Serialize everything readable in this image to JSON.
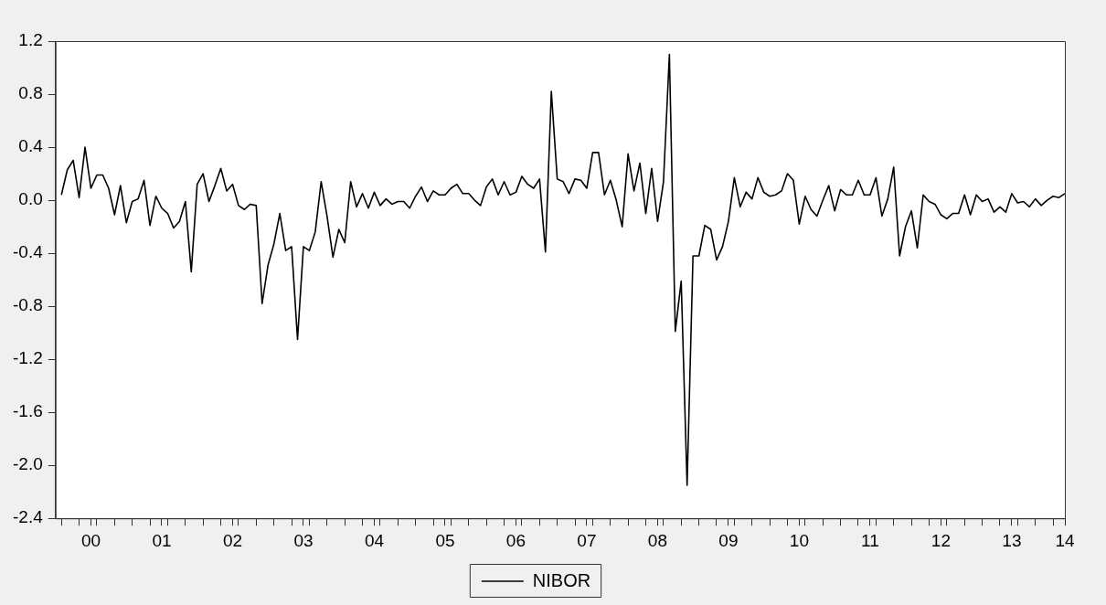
{
  "chart_data": {
    "type": "line",
    "legend": "bottom",
    "line_style": "solid",
    "x": [
      "2000-01",
      "2000-02",
      "2000-03",
      "2000-04",
      "2000-05",
      "2000-06",
      "2000-07",
      "2000-08",
      "2000-09",
      "2000-10",
      "2000-11",
      "2000-12",
      "2001-01",
      "2001-02",
      "2001-03",
      "2001-04",
      "2001-05",
      "2001-06",
      "2001-07",
      "2001-08",
      "2001-09",
      "2001-10",
      "2001-11",
      "2001-12",
      "2002-01",
      "2002-02",
      "2002-03",
      "2002-04",
      "2002-05",
      "2002-06",
      "2002-07",
      "2002-08",
      "2002-09",
      "2002-10",
      "2002-11",
      "2002-12",
      "2003-01",
      "2003-02",
      "2003-03",
      "2003-04",
      "2003-05",
      "2003-06",
      "2003-07",
      "2003-08",
      "2003-09",
      "2003-10",
      "2003-11",
      "2003-12",
      "2004-01",
      "2004-02",
      "2004-03",
      "2004-04",
      "2004-05",
      "2004-06",
      "2004-07",
      "2004-08",
      "2004-09",
      "2004-10",
      "2004-11",
      "2004-12",
      "2005-01",
      "2005-02",
      "2005-03",
      "2005-04",
      "2005-05",
      "2005-06",
      "2005-07",
      "2005-08",
      "2005-09",
      "2005-10",
      "2005-11",
      "2005-12",
      "2006-01",
      "2006-02",
      "2006-03",
      "2006-04",
      "2006-05",
      "2006-06",
      "2006-07",
      "2006-08",
      "2006-09",
      "2006-10",
      "2006-11",
      "2006-12",
      "2007-01",
      "2007-02",
      "2007-03",
      "2007-04",
      "2007-05",
      "2007-06",
      "2007-07",
      "2007-08",
      "2007-09",
      "2007-10",
      "2007-11",
      "2007-12",
      "2008-01",
      "2008-02",
      "2008-03",
      "2008-04",
      "2008-05",
      "2008-06",
      "2008-07",
      "2008-08",
      "2008-09",
      "2008-10",
      "2008-11",
      "2008-12",
      "2009-01",
      "2009-02",
      "2009-03",
      "2009-04",
      "2009-05",
      "2009-06",
      "2009-07",
      "2009-08",
      "2009-09",
      "2009-10",
      "2009-11",
      "2009-12",
      "2010-01",
      "2010-02",
      "2010-03",
      "2010-04",
      "2010-05",
      "2010-06",
      "2010-07",
      "2010-08",
      "2010-09",
      "2010-10",
      "2010-11",
      "2010-12",
      "2011-01",
      "2011-02",
      "2011-03",
      "2011-04",
      "2011-05",
      "2011-06",
      "2011-07",
      "2011-08",
      "2011-09",
      "2011-10",
      "2011-11",
      "2011-12",
      "2012-01",
      "2012-02",
      "2012-03",
      "2012-04",
      "2012-05",
      "2012-06",
      "2012-07",
      "2012-08",
      "2012-09",
      "2012-10",
      "2012-11",
      "2012-12",
      "2013-01",
      "2013-02",
      "2013-03",
      "2013-04",
      "2013-05",
      "2013-06",
      "2013-07",
      "2013-08",
      "2013-09",
      "2013-10",
      "2013-11",
      "2013-12",
      "2014-01",
      "2014-02",
      "2014-03"
    ],
    "series": [
      {
        "name": "NIBOR",
        "color": "#000000",
        "values": [
          0.04,
          0.23,
          0.3,
          0.02,
          0.4,
          0.09,
          0.19,
          0.19,
          0.09,
          -0.11,
          0.11,
          -0.17,
          -0.01,
          0.01,
          0.15,
          -0.19,
          0.03,
          -0.06,
          -0.1,
          -0.21,
          -0.16,
          -0.01,
          -0.54,
          0.12,
          0.2,
          -0.01,
          0.11,
          0.24,
          0.07,
          0.12,
          -0.04,
          -0.07,
          -0.03,
          -0.04,
          -0.78,
          -0.49,
          -0.33,
          -0.1,
          -0.38,
          -0.35,
          -1.05,
          -0.35,
          -0.38,
          -0.24,
          0.14,
          -0.12,
          -0.43,
          -0.22,
          -0.32,
          0.14,
          -0.05,
          0.05,
          -0.06,
          0.06,
          -0.04,
          0.01,
          -0.03,
          -0.01,
          -0.01,
          -0.06,
          0.03,
          0.1,
          -0.01,
          0.07,
          0.04,
          0.04,
          0.09,
          0.12,
          0.05,
          0.05,
          0.0,
          -0.04,
          0.1,
          0.16,
          0.04,
          0.14,
          0.04,
          0.06,
          0.18,
          0.12,
          0.09,
          0.16,
          -0.39,
          0.82,
          0.16,
          0.14,
          0.05,
          0.16,
          0.15,
          0.09,
          0.36,
          0.36,
          0.04,
          0.15,
          0.0,
          -0.2,
          0.35,
          0.07,
          0.28,
          -0.1,
          0.24,
          -0.16,
          0.14,
          1.1,
          -0.99,
          -0.61,
          -2.15,
          -0.42,
          -0.42,
          -0.19,
          -0.22,
          -0.45,
          -0.35,
          -0.16,
          0.17,
          -0.05,
          0.06,
          0.01,
          0.17,
          0.06,
          0.03,
          0.04,
          0.07,
          0.2,
          0.15,
          -0.18,
          0.03,
          -0.07,
          -0.12,
          0.0,
          0.11,
          -0.08,
          0.08,
          0.04,
          0.04,
          0.15,
          0.04,
          0.04,
          0.17,
          -0.12,
          0.01,
          0.25,
          -0.42,
          -0.2,
          -0.08,
          -0.36,
          0.04,
          -0.01,
          -0.03,
          -0.11,
          -0.14,
          -0.1,
          -0.1,
          0.04,
          -0.11,
          0.04,
          -0.01,
          0.01,
          -0.09,
          -0.05,
          -0.09,
          0.05,
          -0.02,
          -0.01,
          -0.05,
          0.01,
          -0.04,
          0.0,
          0.03,
          0.02,
          0.05
        ]
      }
    ],
    "xlim": [
      "1999-12",
      "2014-03"
    ],
    "xticks": [
      {
        "value": "2000-01",
        "label": null
      },
      {
        "value": "2000-04",
        "label": null
      },
      {
        "value": "2000-06",
        "label": "00"
      },
      {
        "value": "2000-07",
        "label": null
      },
      {
        "value": "2000-10",
        "label": null
      },
      {
        "value": "2001-01",
        "label": null
      },
      {
        "value": "2001-04",
        "label": null
      },
      {
        "value": "2001-06",
        "label": "01"
      },
      {
        "value": "2001-07",
        "label": null
      },
      {
        "value": "2001-10",
        "label": null
      },
      {
        "value": "2002-01",
        "label": null
      },
      {
        "value": "2002-04",
        "label": null
      },
      {
        "value": "2002-06",
        "label": "02"
      },
      {
        "value": "2002-07",
        "label": null
      },
      {
        "value": "2002-10",
        "label": null
      },
      {
        "value": "2003-01",
        "label": null
      },
      {
        "value": "2003-04",
        "label": null
      },
      {
        "value": "2003-06",
        "label": "03"
      },
      {
        "value": "2003-07",
        "label": null
      },
      {
        "value": "2003-10",
        "label": null
      },
      {
        "value": "2004-01",
        "label": null
      },
      {
        "value": "2004-04",
        "label": null
      },
      {
        "value": "2004-06",
        "label": "04"
      },
      {
        "value": "2004-07",
        "label": null
      },
      {
        "value": "2004-10",
        "label": null
      },
      {
        "value": "2005-01",
        "label": null
      },
      {
        "value": "2005-04",
        "label": null
      },
      {
        "value": "2005-06",
        "label": "05"
      },
      {
        "value": "2005-07",
        "label": null
      },
      {
        "value": "2005-10",
        "label": null
      },
      {
        "value": "2006-01",
        "label": null
      },
      {
        "value": "2006-04",
        "label": null
      },
      {
        "value": "2006-06",
        "label": "06"
      },
      {
        "value": "2006-07",
        "label": null
      },
      {
        "value": "2006-10",
        "label": null
      },
      {
        "value": "2007-01",
        "label": null
      },
      {
        "value": "2007-04",
        "label": null
      },
      {
        "value": "2007-06",
        "label": "07"
      },
      {
        "value": "2007-07",
        "label": null
      },
      {
        "value": "2007-10",
        "label": null
      },
      {
        "value": "2008-01",
        "label": null
      },
      {
        "value": "2008-04",
        "label": null
      },
      {
        "value": "2008-06",
        "label": "08"
      },
      {
        "value": "2008-07",
        "label": null
      },
      {
        "value": "2008-10",
        "label": null
      },
      {
        "value": "2009-01",
        "label": null
      },
      {
        "value": "2009-04",
        "label": null
      },
      {
        "value": "2009-06",
        "label": "09"
      },
      {
        "value": "2009-07",
        "label": null
      },
      {
        "value": "2009-10",
        "label": null
      },
      {
        "value": "2010-01",
        "label": null
      },
      {
        "value": "2010-04",
        "label": null
      },
      {
        "value": "2010-06",
        "label": "10"
      },
      {
        "value": "2010-07",
        "label": null
      },
      {
        "value": "2010-10",
        "label": null
      },
      {
        "value": "2011-01",
        "label": null
      },
      {
        "value": "2011-04",
        "label": null
      },
      {
        "value": "2011-06",
        "label": "11"
      },
      {
        "value": "2011-07",
        "label": null
      },
      {
        "value": "2011-10",
        "label": null
      },
      {
        "value": "2012-01",
        "label": null
      },
      {
        "value": "2012-04",
        "label": null
      },
      {
        "value": "2012-06",
        "label": "12"
      },
      {
        "value": "2012-07",
        "label": null
      },
      {
        "value": "2012-10",
        "label": null
      },
      {
        "value": "2013-01",
        "label": null
      },
      {
        "value": "2013-04",
        "label": null
      },
      {
        "value": "2013-06",
        "label": "13"
      },
      {
        "value": "2013-07",
        "label": null
      },
      {
        "value": "2013-10",
        "label": null
      },
      {
        "value": "2014-01",
        "label": null
      },
      {
        "value": "2014-03",
        "label": "14"
      }
    ],
    "ylim": [
      -2.4,
      1.2
    ],
    "yticks": [
      1.2,
      0.8,
      0.4,
      {
        "value": 0,
        "label": "0.0"
      },
      -0.4,
      -0.8,
      -1.2,
      -1.6,
      {
        "value": -2,
        "label": "-2.0"
      },
      -2.4
    ]
  }
}
